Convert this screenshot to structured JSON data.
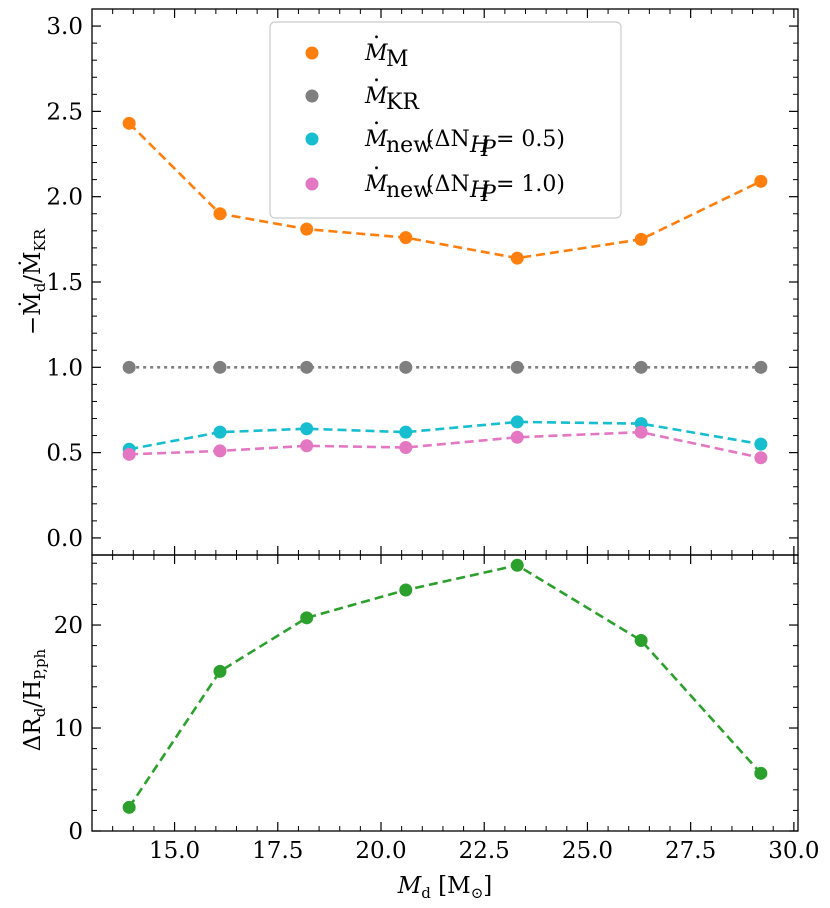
{
  "chart_data": [
    {
      "type": "line",
      "panel": "top",
      "xlabel": "M_d [M_sun]",
      "ylabel": "-Ṁ_d / Ṁ_KR",
      "xlim": [
        13.0,
        30.1
      ],
      "ylim": [
        -0.1,
        3.1
      ],
      "yticks": [
        0.0,
        0.5,
        1.0,
        1.5,
        2.0,
        2.5,
        3.0
      ],
      "ytick_labels": [
        "0.0",
        "0.5",
        "1.0",
        "1.5",
        "2.0",
        "2.5",
        "3.0"
      ],
      "x": [
        13.9,
        16.1,
        18.2,
        20.6,
        23.3,
        26.3,
        29.2
      ],
      "series": [
        {
          "name": "Ṁ_M",
          "color": "#ff7f0e",
          "linestyle": "dashed",
          "values": [
            2.43,
            1.9,
            1.81,
            1.76,
            1.64,
            1.75,
            2.09
          ]
        },
        {
          "name": "Ṁ_KR",
          "color": "#7f7f7f",
          "linestyle": "dotted",
          "values": [
            1.0,
            1.0,
            1.0,
            1.0,
            1.0,
            1.0,
            1.0
          ]
        },
        {
          "name": "Ṁ_new (ΔN_HP = 0.5)",
          "color": "#17becf",
          "linestyle": "dashed",
          "values": [
            0.52,
            0.62,
            0.64,
            0.62,
            0.68,
            0.67,
            0.55
          ]
        },
        {
          "name": "Ṁ_new (ΔN_HP = 1.0)",
          "color": "#e377c2",
          "linestyle": "dashed",
          "values": [
            0.49,
            0.51,
            0.54,
            0.53,
            0.59,
            0.62,
            0.47
          ]
        }
      ],
      "legend_location": "top-center"
    },
    {
      "type": "line",
      "panel": "bottom",
      "xlabel": "M_d [M_sun]",
      "ylabel": "ΔR_d / H_P,ph",
      "xlim": [
        13.0,
        30.1
      ],
      "ylim": [
        0,
        26.8
      ],
      "yticks": [
        0,
        10,
        20
      ],
      "ytick_labels": [
        "0",
        "10",
        "20"
      ],
      "xticks": [
        15.0,
        17.5,
        20.0,
        22.5,
        25.0,
        27.5,
        30.0
      ],
      "xtick_labels": [
        "15.0",
        "17.5",
        "20.0",
        "22.5",
        "25.0",
        "27.5",
        "30.0"
      ],
      "x": [
        13.9,
        16.1,
        18.2,
        20.6,
        23.3,
        26.3,
        29.2
      ],
      "series": [
        {
          "name": "ΔR_d/H_P,ph",
          "color": "#2ca02c",
          "linestyle": "dashed",
          "values": [
            2.3,
            15.5,
            20.7,
            23.4,
            25.8,
            18.5,
            5.6
          ]
        }
      ]
    }
  ]
}
